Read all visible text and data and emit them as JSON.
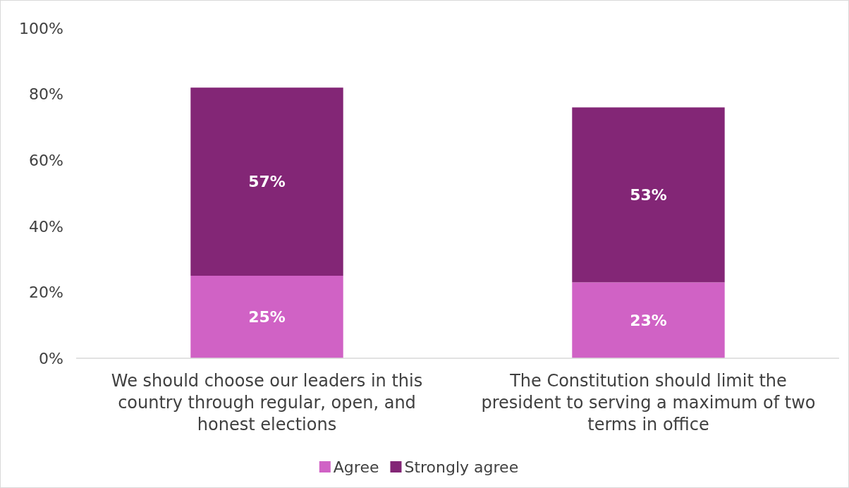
{
  "chart_data": {
    "type": "bar",
    "stacked": true,
    "categories": [
      "We should choose our leaders in this country through regular, open, and honest elections",
      "The Constitution should limit the president to serving a maximum of two terms in office"
    ],
    "series": [
      {
        "name": "Agree",
        "color": "#d062c5",
        "values": [
          25,
          23
        ],
        "value_labels": [
          "25%",
          "23%"
        ]
      },
      {
        "name": "Strongly agree",
        "color": "#832676",
        "values": [
          57,
          53
        ],
        "value_labels": [
          "57%",
          "53%"
        ]
      }
    ],
    "ylim": [
      0,
      100
    ],
    "yticks": [
      {
        "value": 0,
        "label": "0%"
      },
      {
        "value": 20,
        "label": "20%"
      },
      {
        "value": 40,
        "label": "40%"
      },
      {
        "value": 60,
        "label": "60%"
      },
      {
        "value": 80,
        "label": "80%"
      },
      {
        "value": 100,
        "label": "100%"
      }
    ],
    "grid": false,
    "legend": "bottom"
  }
}
